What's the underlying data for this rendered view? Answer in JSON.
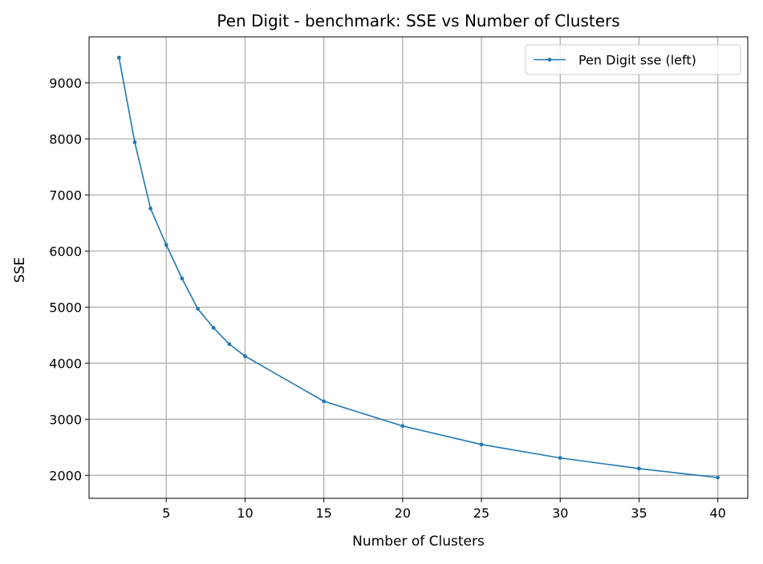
{
  "chart_data": {
    "type": "line",
    "title": "Pen Digit - benchmark: SSE vs Number of Clusters",
    "xlabel": "Number of Clusters",
    "ylabel": "SSE",
    "xlim": [
      0.1,
      41.9
    ],
    "ylim": [
      1590,
      9820
    ],
    "xticks": [
      5,
      10,
      15,
      20,
      25,
      30,
      35,
      40
    ],
    "yticks": [
      2000,
      3000,
      4000,
      5000,
      6000,
      7000,
      8000,
      9000
    ],
    "grid": true,
    "legend_position": "top-right",
    "series": [
      {
        "name": "Pen Digit sse (left)",
        "color": "#1f77b4",
        "marker": "point",
        "x": [
          2,
          3,
          4,
          5,
          6,
          7,
          8,
          9,
          10,
          15,
          20,
          25,
          30,
          35,
          40
        ],
        "y": [
          9450,
          7940,
          6760,
          6110,
          5510,
          4970,
          4630,
          4340,
          4125,
          3320,
          2880,
          2550,
          2310,
          2120,
          1960
        ]
      }
    ]
  }
}
